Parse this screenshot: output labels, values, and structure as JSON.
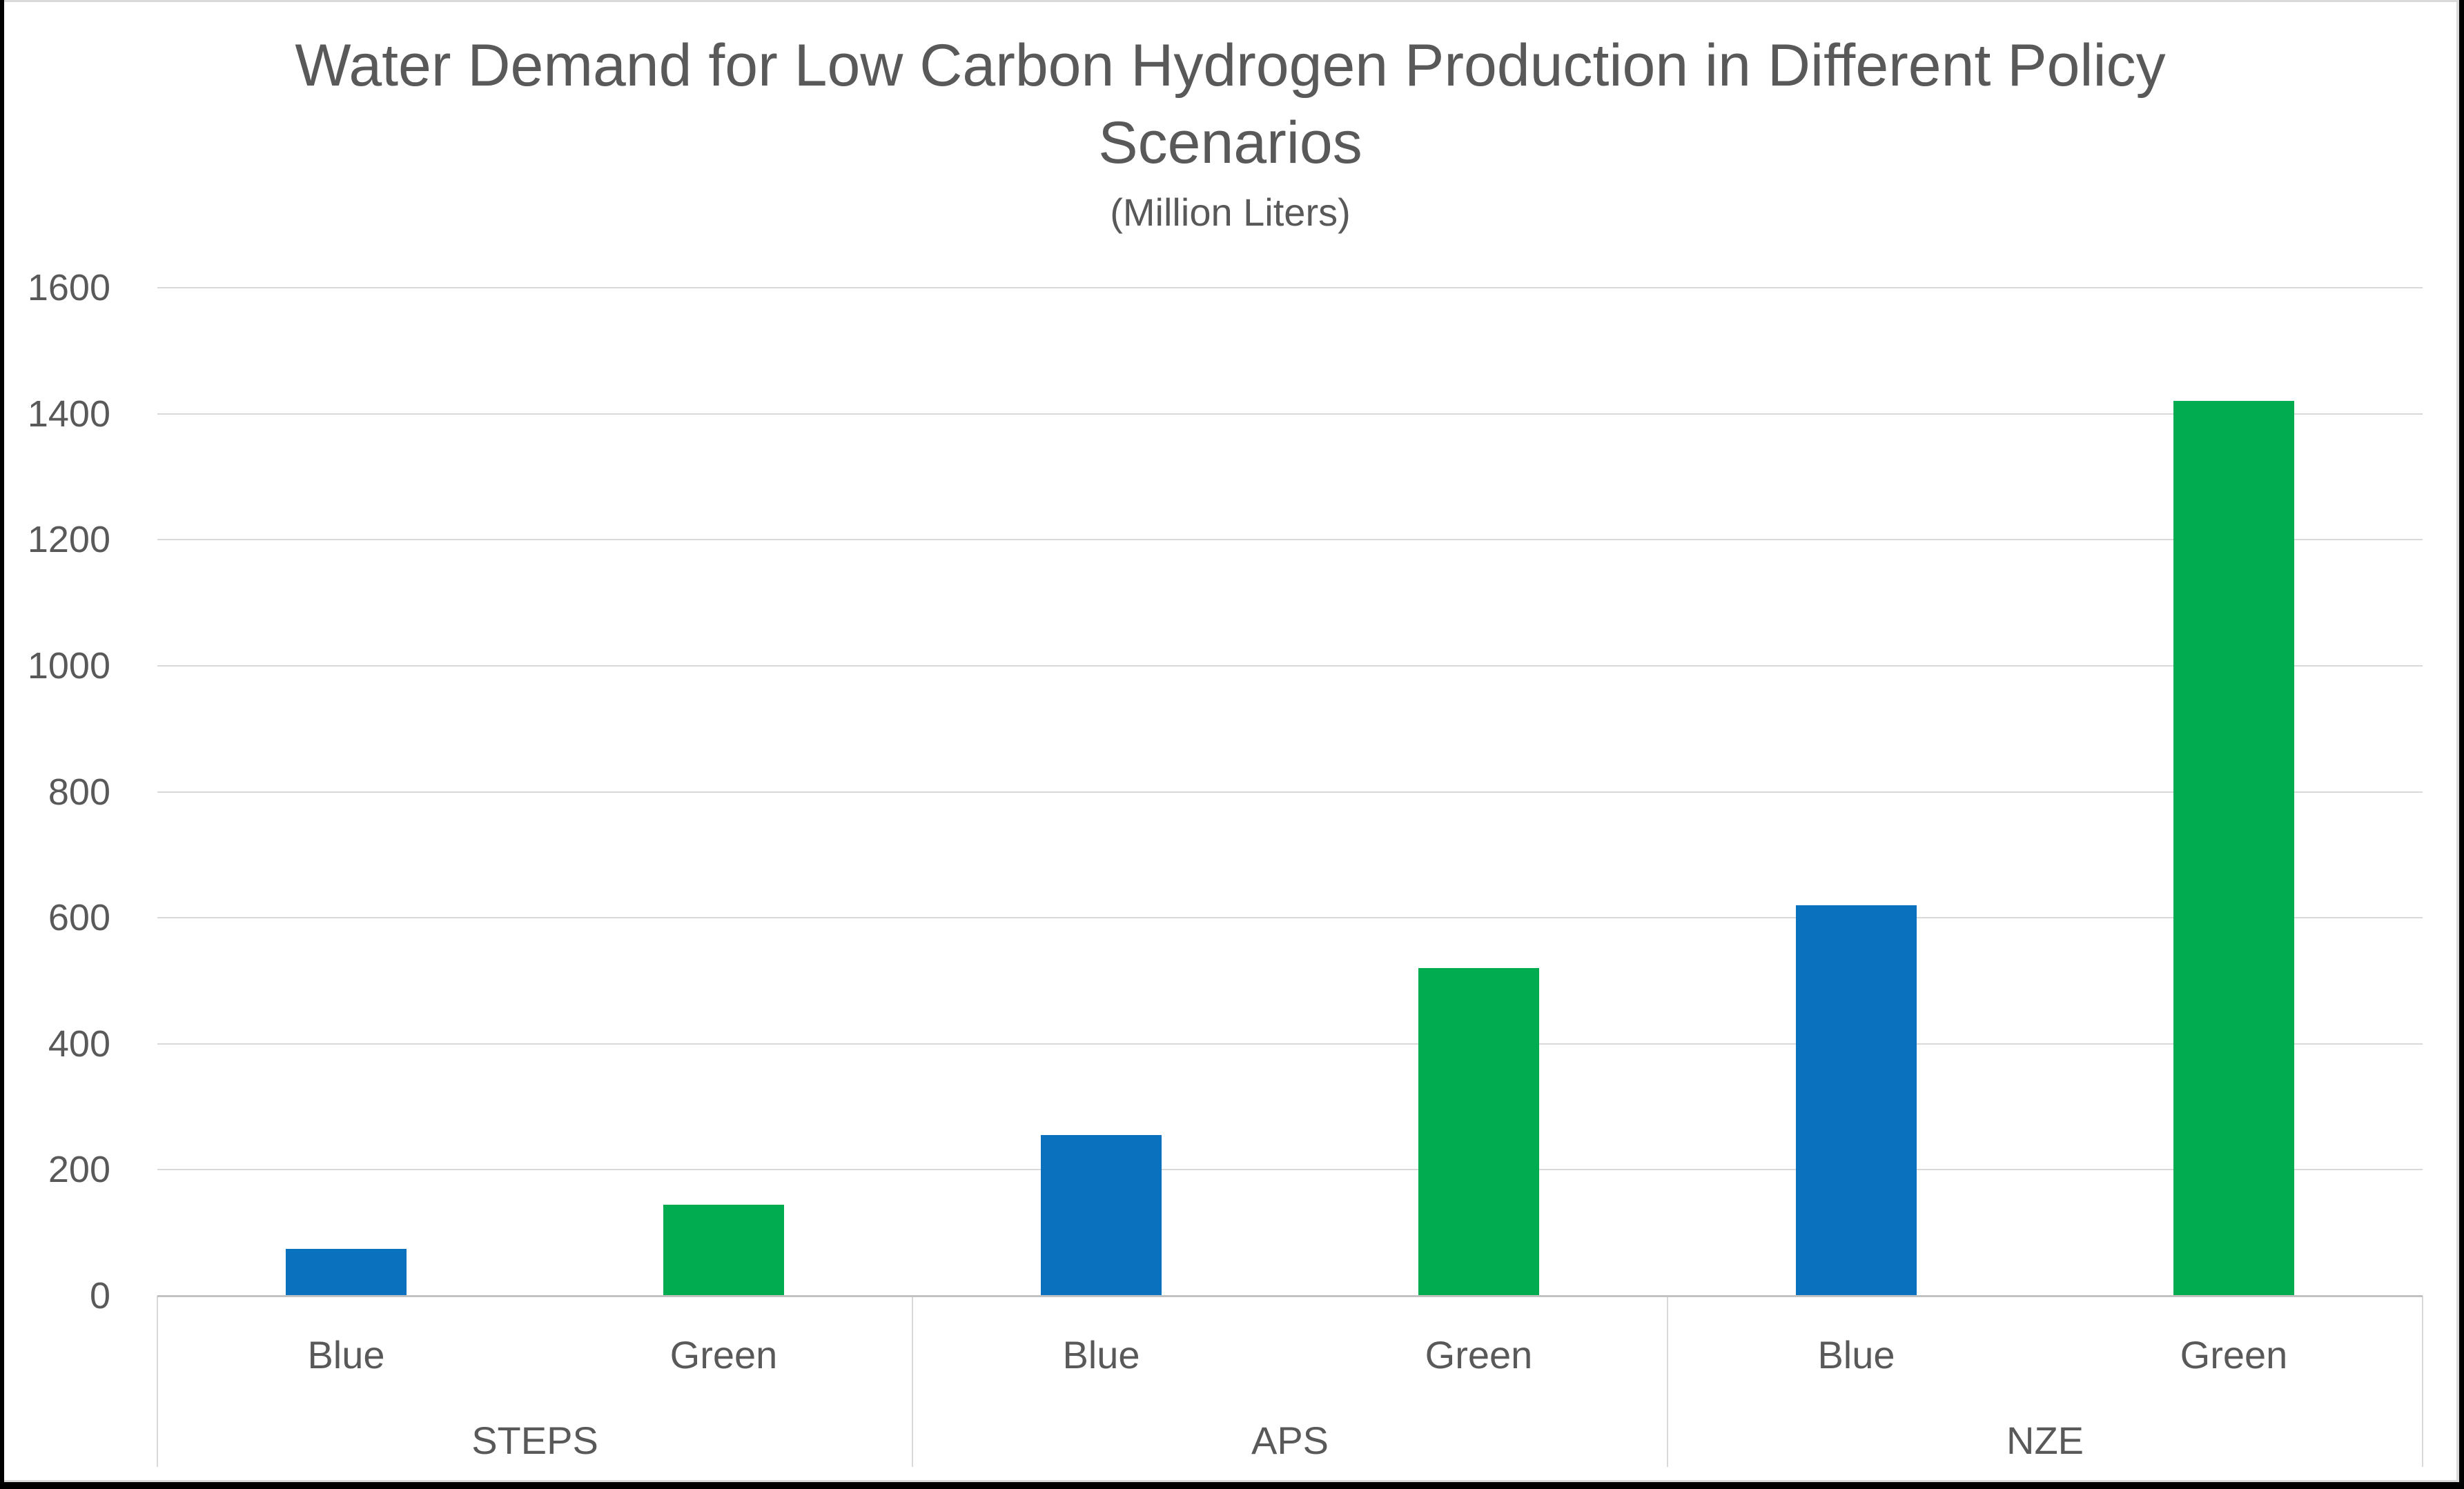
{
  "chart_data": {
    "type": "bar",
    "title": "Water Demand for Low Carbon Hydrogen Production in Different Policy\nScenarios",
    "subtitle": "(Million Liters)",
    "categories": [
      "STEPS",
      "APS",
      "NZE"
    ],
    "sub_categories": [
      "Blue",
      "Green"
    ],
    "series": [
      {
        "name": "Blue",
        "color": "#0971BD",
        "values": [
          75,
          255,
          620
        ]
      },
      {
        "name": "Green",
        "color": "#00AC4F",
        "values": [
          145,
          520,
          1420
        ]
      }
    ],
    "ylim": [
      0,
      1600
    ],
    "yticks": [
      0,
      200,
      400,
      600,
      800,
      1000,
      1200,
      1400,
      1600
    ],
    "grid": true,
    "legend_position": "none",
    "text_color": "#595959",
    "gridline_color": "#D9D9D9",
    "axis_line_color": "#C2C2C2"
  }
}
